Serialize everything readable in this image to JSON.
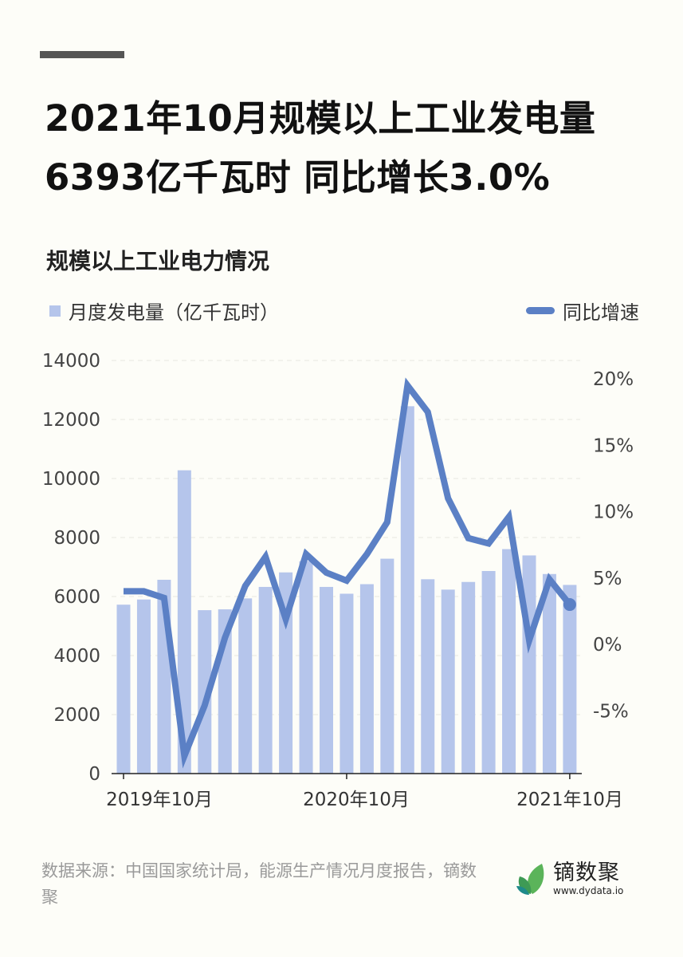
{
  "title": "2021年10月规模以上工业发电量6393亿千瓦时 同比增长3.0%",
  "subtitle": "规模以上工业电力情况",
  "source": "数据来源：中国国家统计局，能源生产情况月度报告，镝数聚",
  "logo": {
    "name": "镝数聚",
    "url": "www.dydata.io"
  },
  "colors": {
    "bar": "#b5c5eb",
    "line": "#5b80c5",
    "background": "#fdfdf8"
  },
  "chart_data": {
    "type": "bar+line",
    "categories": [
      "2019-10",
      "2019-11",
      "2019-12",
      "2020-01~02",
      "2020-03",
      "2020-04",
      "2020-05",
      "2020-06",
      "2020-07",
      "2020-08",
      "2020-09",
      "2020-10",
      "2020-11",
      "2020-12",
      "2021-01~02",
      "2021-03",
      "2021-04",
      "2021-05",
      "2021-06",
      "2021-07",
      "2021-08",
      "2021-09",
      "2021-10"
    ],
    "x_tick_labels": [
      {
        "index": 0,
        "label": "2019年10月"
      },
      {
        "index": 11,
        "label": "2020年10月"
      },
      {
        "index": 22,
        "label": "2021年10月"
      }
    ],
    "series": [
      {
        "name": "月度发电量（亿千瓦时）",
        "type": "bar",
        "axis": "left",
        "values": [
          5724,
          5900,
          6568,
          10278,
          5538,
          5566,
          5937,
          6326,
          6818,
          7200,
          6326,
          6095,
          6419,
          7282,
          12449,
          6586,
          6234,
          6494,
          6865,
          7607,
          7393,
          6763,
          6393
        ]
      },
      {
        "name": "同比增速",
        "type": "line",
        "axis": "right",
        "unit": "%",
        "values": [
          4.0,
          4.0,
          3.5,
          -8.4,
          -4.6,
          0.5,
          4.4,
          6.6,
          1.9,
          6.8,
          5.4,
          4.8,
          6.8,
          9.2,
          19.5,
          17.5,
          11.0,
          8.0,
          7.6,
          9.6,
          0.3,
          4.9,
          3.0
        ]
      }
    ],
    "left_axis": {
      "range": [
        0,
        14000
      ],
      "ticks": [
        "0",
        "2000",
        "4000",
        "6000",
        "8000",
        "10000",
        "12000",
        "14000"
      ]
    },
    "right_axis": {
      "range": [
        -10,
        21
      ],
      "ticks": [
        "-5%",
        "0%",
        "5%",
        "10%",
        "15%",
        "20%"
      ]
    },
    "grid": true,
    "legend_placement": "top"
  }
}
